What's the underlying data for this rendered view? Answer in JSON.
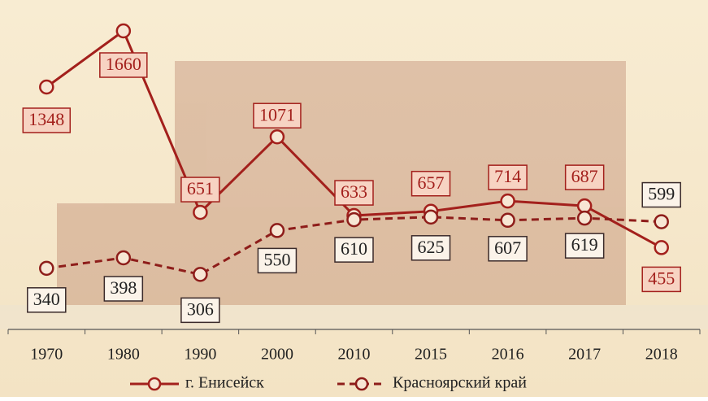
{
  "chart_data": {
    "type": "line",
    "categories": [
      "1970",
      "1980",
      "1990",
      "2000",
      "2010",
      "2015",
      "2016",
      "2017",
      "2018"
    ],
    "series": [
      {
        "name": "г. Енисейск",
        "color": "#a3201c",
        "style": "solid",
        "values": [
          1348,
          1660,
          651,
          1071,
          633,
          657,
          714,
          687,
          455
        ]
      },
      {
        "name": "Красноярский край",
        "color": "#8e1d1a",
        "style": "dashed",
        "values": [
          340,
          398,
          306,
          550,
          610,
          625,
          607,
          619,
          599
        ]
      }
    ]
  }
}
